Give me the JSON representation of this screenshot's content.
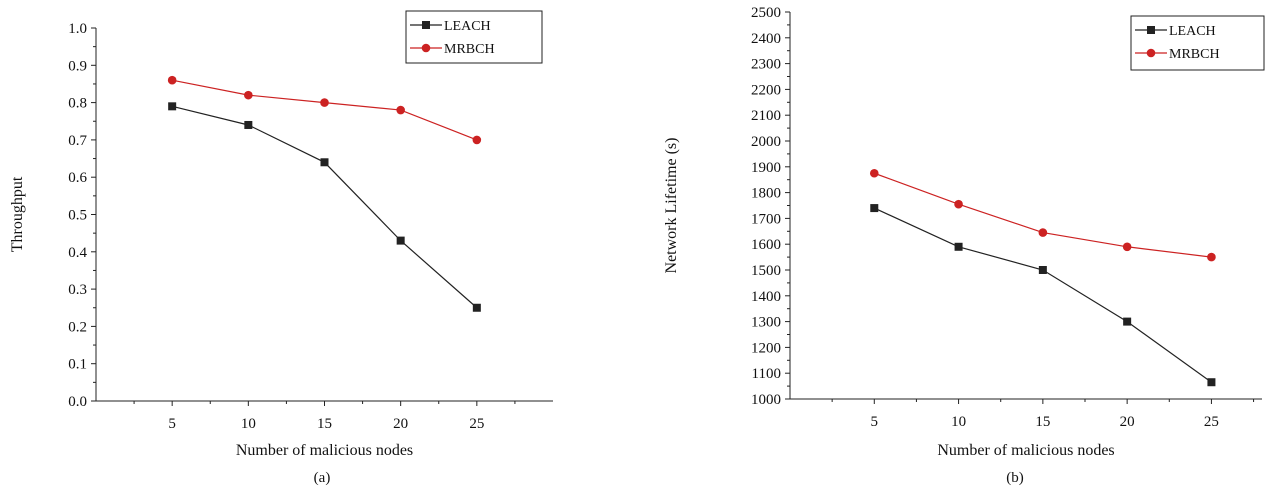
{
  "colors": {
    "LEACH": "#222222",
    "MRBCH": "#cc2222"
  },
  "chart_data": [
    {
      "type": "line",
      "caption": "(a)",
      "xlabel": "Number of malicious nodes",
      "ylabel": "Throughput",
      "x": [
        5,
        10,
        15,
        20,
        25
      ],
      "xlim": [
        0,
        30
      ],
      "xticks": [
        5,
        10,
        15,
        20,
        25
      ],
      "ylim": [
        0,
        1.0
      ],
      "yticks": [
        "0.0",
        "0.1",
        "0.2",
        "0.3",
        "0.4",
        "0.5",
        "0.6",
        "0.7",
        "0.8",
        "0.9",
        "1.0"
      ],
      "legend_position": "top-right",
      "grid": false,
      "series": [
        {
          "name": "LEACH",
          "marker": "square",
          "values": [
            0.79,
            0.74,
            0.64,
            0.43,
            0.25
          ]
        },
        {
          "name": "MRBCH",
          "marker": "circle",
          "values": [
            0.86,
            0.82,
            0.8,
            0.78,
            0.7
          ]
        }
      ]
    },
    {
      "type": "line",
      "caption": "(b)",
      "xlabel": "Number of malicious nodes",
      "ylabel": "Network Lifetime (s)",
      "x": [
        5,
        10,
        15,
        20,
        25
      ],
      "xlim": [
        0,
        28
      ],
      "xticks": [
        5,
        10,
        15,
        20,
        25
      ],
      "ylim": [
        1000,
        2500
      ],
      "yticks": [
        "1000",
        "1100",
        "1200",
        "1300",
        "1400",
        "1500",
        "1600",
        "1700",
        "1800",
        "1900",
        "2000",
        "2100",
        "2200",
        "2300",
        "2400",
        "2500"
      ],
      "legend_position": "top-right",
      "grid": false,
      "series": [
        {
          "name": "LEACH",
          "marker": "square",
          "values": [
            1740,
            1590,
            1500,
            1300,
            1065
          ]
        },
        {
          "name": "MRBCH",
          "marker": "circle",
          "values": [
            1875,
            1755,
            1645,
            1590,
            1550
          ]
        }
      ]
    }
  ]
}
